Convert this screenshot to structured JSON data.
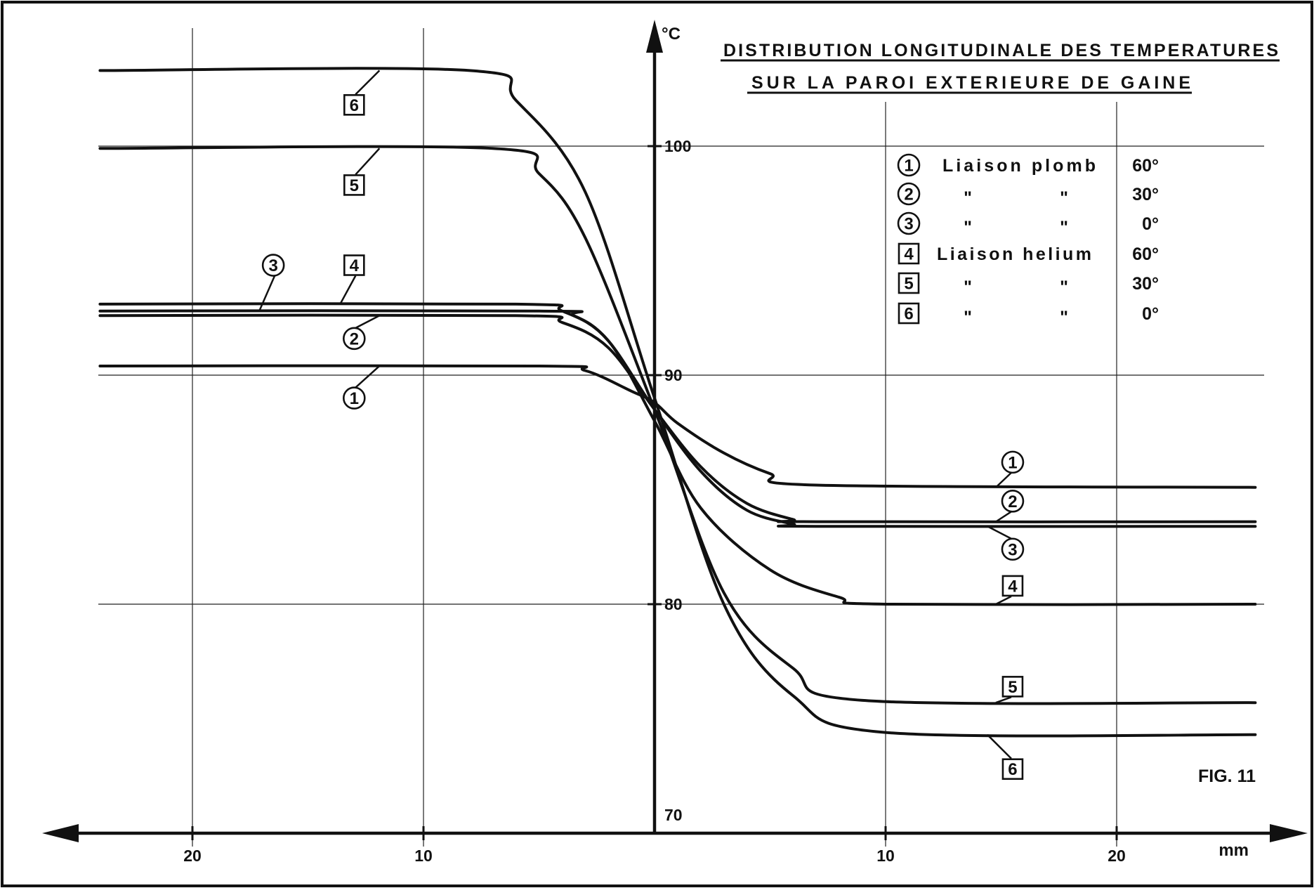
{
  "chart_data": {
    "type": "line",
    "title_lines": [
      "DISTRIBUTION LONGITUDINALE DES TEMPERATURES",
      "SUR LA PAROI EXTERIEURE DE GAINE"
    ],
    "y_unit": "°C",
    "x_unit": "mm",
    "figure_label": "FIG. 11",
    "xlim": [
      -27,
      27
    ],
    "ylim": [
      70,
      104
    ],
    "grid": true,
    "y_ticks": [
      {
        "value": 100,
        "label": "100"
      },
      {
        "value": 90,
        "label": "90"
      },
      {
        "value": 80,
        "label": "80"
      },
      {
        "value": 70,
        "label": "70"
      }
    ],
    "x_ticks": [
      {
        "value": -20,
        "label": "20"
      },
      {
        "value": -10,
        "label": "10"
      },
      {
        "value": 10,
        "label": "10"
      },
      {
        "value": 20,
        "label": "20"
      }
    ],
    "legend": [
      {
        "id": "1",
        "shape": "circle",
        "label": "Liaison plomb",
        "angle": "60°"
      },
      {
        "id": "2",
        "shape": "circle",
        "label": "\"",
        "label2": "\"",
        "angle": "30°"
      },
      {
        "id": "3",
        "shape": "circle",
        "label": "\"",
        "label2": "\"",
        "angle": "0°"
      },
      {
        "id": "4",
        "shape": "square",
        "label": "Liaison helium",
        "angle": "60°"
      },
      {
        "id": "5",
        "shape": "square",
        "label": "\"",
        "label2": "\"",
        "angle": "30°"
      },
      {
        "id": "6",
        "shape": "square",
        "label": "\"",
        "label2": "\"",
        "angle": "0°"
      }
    ],
    "series": [
      {
        "id": "1",
        "shape": "circle",
        "left_level": 90.4,
        "right_level": 85.1,
        "x": [
          -24,
          -5,
          -3,
          -1,
          0,
          1,
          3,
          5,
          7,
          26
        ],
        "y": [
          90.4,
          90.4,
          90.2,
          89.3,
          88.8,
          87.9,
          86.6,
          85.7,
          85.2,
          85.1
        ]
      },
      {
        "id": "2",
        "shape": "circle",
        "left_level": 92.6,
        "right_level": 83.6,
        "x": [
          -24,
          -6,
          -4,
          -2,
          0,
          2,
          4,
          6,
          7,
          26
        ],
        "y": [
          92.6,
          92.6,
          92.3,
          91.2,
          88.5,
          86.0,
          84.4,
          83.7,
          83.6,
          83.6
        ]
      },
      {
        "id": "3",
        "shape": "circle",
        "left_level": 92.8,
        "right_level": 83.4,
        "x": [
          -24,
          -5,
          -3.5,
          -2,
          0,
          2,
          4,
          6,
          7,
          26
        ],
        "y": [
          92.8,
          92.8,
          92.6,
          91.5,
          88.5,
          85.8,
          84.1,
          83.5,
          83.4,
          83.4
        ]
      },
      {
        "id": "4",
        "shape": "square",
        "left_level": 93.1,
        "right_level": 80.0,
        "x": [
          -24,
          -6,
          -4,
          -2,
          0,
          2,
          5,
          8,
          10,
          26
        ],
        "y": [
          93.1,
          93.1,
          92.8,
          91.5,
          88.0,
          84.2,
          81.5,
          80.3,
          80.0,
          80.0
        ]
      },
      {
        "id": "5",
        "shape": "square",
        "left_level": 99.9,
        "right_level": 75.7,
        "x": [
          -24,
          -7,
          -5,
          -3,
          0,
          3,
          6,
          9,
          26
        ],
        "y": [
          99.9,
          99.9,
          98.8,
          96.0,
          88.5,
          80.5,
          77.2,
          75.8,
          75.7
        ]
      },
      {
        "id": "6",
        "shape": "square",
        "left_level": 103.3,
        "right_level": 74.3,
        "x": [
          -24,
          -8,
          -6,
          -3,
          0,
          3,
          6,
          10,
          26
        ],
        "y": [
          103.3,
          103.3,
          102.0,
          98.0,
          89.0,
          80.0,
          76.0,
          74.4,
          74.3
        ]
      }
    ],
    "annotations": [
      {
        "series": "1",
        "x": -13.0,
        "y": 89.0
      },
      {
        "series": "2",
        "x": -13.0,
        "y": 91.6
      },
      {
        "series": "3",
        "x": -16.5,
        "y": 94.8
      },
      {
        "series": "4",
        "x": -13.0,
        "y": 94.8
      },
      {
        "series": "5",
        "x": -13.0,
        "y": 98.3
      },
      {
        "series": "6",
        "x": -13.0,
        "y": 101.8
      },
      {
        "series": "1",
        "x": 15.5,
        "y": 86.2
      },
      {
        "series": "2",
        "x": 15.5,
        "y": 84.5
      },
      {
        "series": "3",
        "x": 15.5,
        "y": 82.4
      },
      {
        "series": "4",
        "x": 15.5,
        "y": 80.8
      },
      {
        "series": "5",
        "x": 15.5,
        "y": 76.4
      },
      {
        "series": "6",
        "x": 15.5,
        "y": 72.8
      }
    ]
  }
}
